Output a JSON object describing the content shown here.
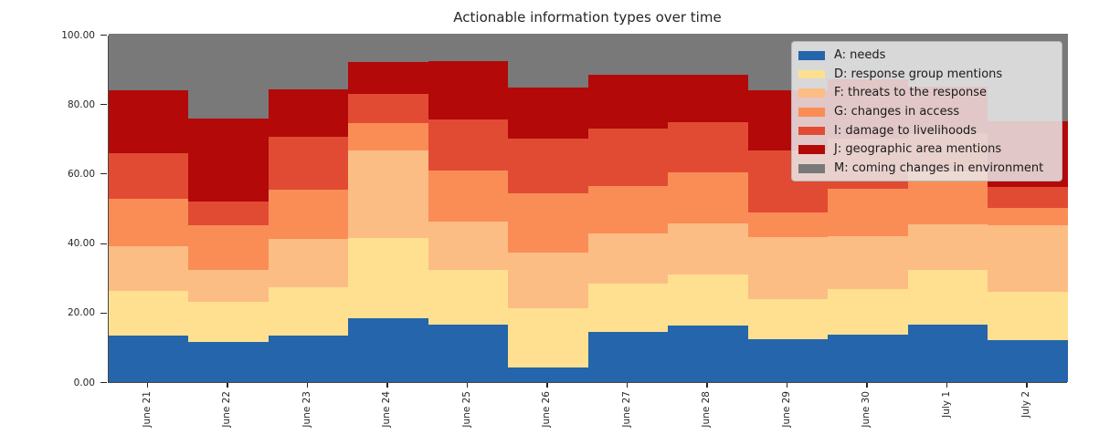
{
  "title": "Actionable information types over time",
  "y_axis": {
    "tick_values": [
      0,
      20,
      40,
      60,
      80,
      100
    ],
    "tick_labels": [
      "0.00",
      "20.00",
      "40.00",
      "60.00",
      "80.00",
      "100.00"
    ],
    "min": 0,
    "max": 100
  },
  "x_axis": {
    "tick_labels": [
      "June 21",
      "June 22",
      "June 23",
      "June 24",
      "June 25",
      "June 26",
      "June 27",
      "June 28",
      "June 29",
      "June 30",
      "July 1",
      "July 2"
    ]
  },
  "legend": {
    "position": "upper-right",
    "items": [
      {
        "label": "A: needs",
        "color": "#2565ab"
      },
      {
        "label": "D: response group mentions",
        "color": "#fee090"
      },
      {
        "label": "F: threats to the response",
        "color": "#fbbd84"
      },
      {
        "label": "G: changes in access",
        "color": "#fa8d56"
      },
      {
        "label": "I: damage to livelihoods",
        "color": "#e14b33"
      },
      {
        "label": "J: geographic area mentions",
        "color": "#b30909"
      },
      {
        "label": "M: coming changes in environment",
        "color": "#797979"
      }
    ]
  },
  "chart_data": {
    "type": "area",
    "subtype": "stacked-step-100pct",
    "title": "Actionable information types over time",
    "xlabel": "",
    "ylabel": "",
    "ylim": [
      0,
      100
    ],
    "grid": false,
    "legend_position": "upper-right",
    "categories": [
      "June 21",
      "June 22",
      "June 23",
      "June 24",
      "June 25",
      "June 26",
      "June 27",
      "June 28",
      "June 29",
      "June 30",
      "July 1",
      "July 2"
    ],
    "series": [
      {
        "name": "A: needs",
        "color": "#2565ab",
        "values": [
          13.2,
          11.5,
          13.4,
          18.2,
          16.6,
          4.2,
          14.3,
          16.1,
          12.4,
          13.6,
          16.4,
          12.0
        ]
      },
      {
        "name": "D: response group mentions",
        "color": "#fee090",
        "values": [
          13.0,
          11.5,
          13.9,
          23.1,
          15.7,
          17.1,
          14.0,
          14.7,
          11.4,
          13.1,
          15.9,
          14.0
        ]
      },
      {
        "name": "F: threats to the response",
        "color": "#fbbd84",
        "values": [
          12.9,
          9.3,
          13.8,
          25.3,
          13.8,
          15.8,
          14.5,
          14.8,
          18.0,
          15.3,
          13.1,
          19.2
        ]
      },
      {
        "name": "G: changes in access",
        "color": "#fa8d56",
        "values": [
          13.7,
          12.7,
          14.1,
          7.9,
          14.8,
          17.3,
          13.5,
          14.6,
          6.9,
          13.5,
          15.1,
          4.8
        ]
      },
      {
        "name": "I: damage to livelihoods",
        "color": "#e14b33",
        "values": [
          13.1,
          7.0,
          15.4,
          8.3,
          14.6,
          15.5,
          16.6,
          14.5,
          17.9,
          14.5,
          11.0,
          6.1
        ]
      },
      {
        "name": "J: geographic area mentions",
        "color": "#b30909",
        "values": [
          18.0,
          23.9,
          13.6,
          9.2,
          16.9,
          14.9,
          15.4,
          13.8,
          17.3,
          17.0,
          13.5,
          18.9
        ]
      },
      {
        "name": "M: coming changes in environment",
        "color": "#797979",
        "values": [
          16.1,
          24.1,
          15.8,
          8.0,
          7.6,
          15.2,
          11.7,
          11.5,
          16.1,
          13.0,
          15.0,
          25.0
        ]
      }
    ]
  }
}
